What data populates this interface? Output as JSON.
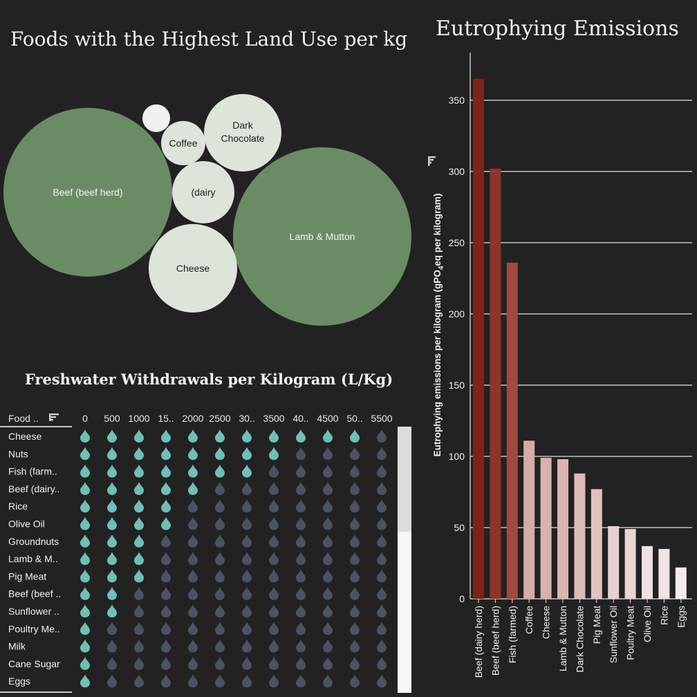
{
  "bubble_chart": {
    "title": "Foods with the Highest Land Use per kg",
    "colors": {
      "large": "#6a8c64",
      "small": "#dde4da",
      "tiny": "#f0f0f0",
      "label_dark": "#1e1e1e",
      "label_light": "#f4f4f4"
    },
    "bubbles": [
      {
        "label": "Beef (beef herd)",
        "tone": "large"
      },
      {
        "label": "Lamb & Mutton",
        "tone": "large"
      },
      {
        "label": "Cheese",
        "tone": "small"
      },
      {
        "label": "(dairy",
        "tone": "small"
      },
      {
        "label": "Coffee",
        "tone": "small"
      },
      {
        "label": "Dark Chocolate",
        "line1": "Dark",
        "line2": "Chocolate",
        "tone": "small"
      },
      {
        "label": "",
        "tone": "tiny"
      }
    ]
  },
  "chart_data": [
    {
      "type": "table",
      "title": "Freshwater Withdrawals per Kilogram (L/Kg)",
      "first_column_header": "Food ..",
      "sort_icon": "sort-icon",
      "columns": [
        "0",
        "500",
        "1000",
        "15..",
        "2000",
        "2500",
        "30..",
        "3500",
        "40..",
        "4500",
        "50..",
        "5500"
      ],
      "rows": [
        {
          "food": "Cheese",
          "filled": 11
        },
        {
          "food": "Nuts",
          "filled": 8
        },
        {
          "food": "Fish (farm..",
          "filled": 7
        },
        {
          "food": "Beef (dairy..",
          "filled": 5
        },
        {
          "food": "Rice",
          "filled": 4
        },
        {
          "food": "Olive Oil",
          "filled": 4
        },
        {
          "food": "Groundnuts",
          "filled": 3
        },
        {
          "food": "Lamb & M..",
          "filled": 3
        },
        {
          "food": "Pig Meat",
          "filled": 3
        },
        {
          "food": "Beef (beef ..",
          "filled": 2
        },
        {
          "food": "Sunflower ..",
          "filled": 2
        },
        {
          "food": "Poultry Me..",
          "filled": 1
        },
        {
          "food": "Milk",
          "filled": 1
        },
        {
          "food": "Cane Sugar",
          "filled": 1
        },
        {
          "food": "Eggs",
          "filled": 1
        }
      ],
      "colors": {
        "filled": "#6fc0b4",
        "empty": "#4b5363"
      }
    },
    {
      "type": "bar",
      "title": "Eutrophying Emissions",
      "ylabel_prefix": "Eutrophying emissions per kilogram (gPO",
      "ylabel_sub": "4",
      "ylabel_suffix": "eq per kilogram)",
      "ylim": [
        0,
        385
      ],
      "yticks": [
        0,
        50,
        100,
        150,
        200,
        250,
        300,
        350
      ],
      "grid": true,
      "categories": [
        "Beef (dairy herd)",
        "Beef (beef herd)",
        "Fish (farmed)",
        "Coffee",
        "Cheese",
        "Lamb & Mutton",
        "Dark Chocolate",
        "Pig Meat",
        "Sunflower Oil",
        "Poultry Meat",
        "Olive Oil",
        "Rice",
        "Eggs"
      ],
      "values": [
        365,
        302,
        236,
        111,
        99,
        98,
        88,
        77,
        51,
        49,
        37,
        35,
        22
      ],
      "colors": [
        "#7a2519",
        "#8e3529",
        "#9e4a3e",
        "#d7aba5",
        "#d9b2ad",
        "#dbb5b0",
        "#ddbcb7",
        "#e0c2be",
        "#e7d2cf",
        "#e9d6d3",
        "#eee1df",
        "#efe4e2",
        "#f3ecea"
      ]
    }
  ]
}
